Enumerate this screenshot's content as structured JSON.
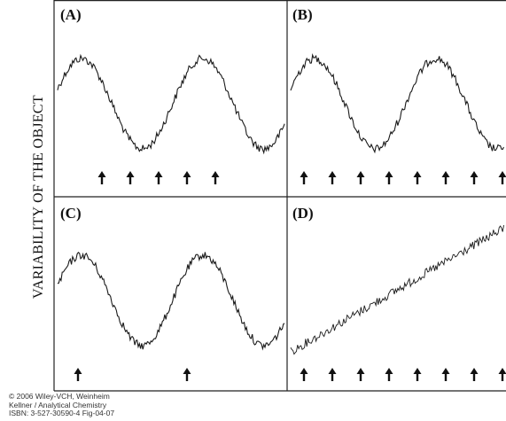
{
  "figure": {
    "ylabel": "VARIABILITY OF THE OBJECT",
    "panels": [
      {
        "label": "(A)",
        "signal": "sine",
        "cycles_shown": 2,
        "arrow_count": 5
      },
      {
        "label": "(B)",
        "signal": "sine",
        "cycles_shown": 2,
        "arrow_count": 8
      },
      {
        "label": "(C)",
        "signal": "sine",
        "cycles_shown": 2,
        "arrow_count": 2
      },
      {
        "label": "(D)",
        "signal": "linear-trend",
        "cycles_shown": 0,
        "arrow_count": 8
      }
    ],
    "line_color": "#1a1a1a",
    "border_color": "#222222"
  },
  "copyright": [
    "© 2006 Wiley-VCH, Weinheim",
    "Kellner / Analytical Chemistry",
    "ISBN: 3-527-30590-4   Fig-04-07"
  ]
}
